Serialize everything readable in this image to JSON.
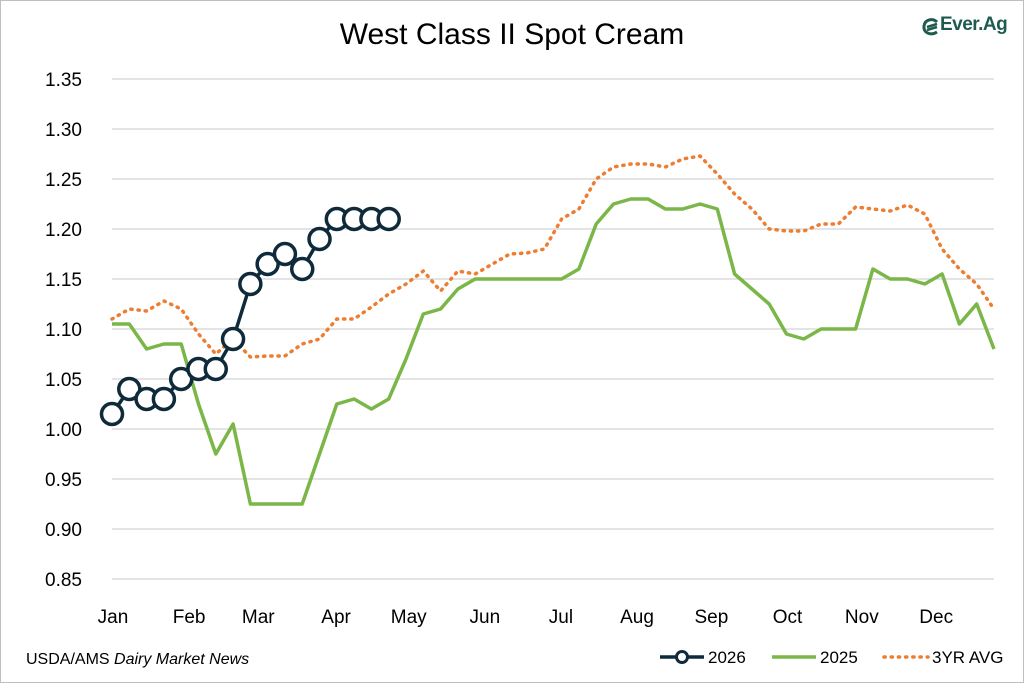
{
  "chart_data": {
    "type": "line",
    "title": "West Class II Spot Cream",
    "xlabel": "",
    "ylabel": "",
    "ylim": [
      0.85,
      1.35
    ],
    "yticks": [
      "1.35",
      "1.30",
      "1.25",
      "1.20",
      "1.15",
      "1.10",
      "1.05",
      "1.00",
      "0.95",
      "0.90",
      "0.85"
    ],
    "month_labels": [
      "Jan",
      "Feb",
      "Mar",
      "Apr",
      "May",
      "Jun",
      "Jul",
      "Aug",
      "Sep",
      "Oct",
      "Nov",
      "Dec"
    ],
    "grid": true,
    "legend_position": "bottom-right",
    "x_unit": "week of year",
    "series": [
      {
        "name": "2026",
        "color": "#0f2a3b",
        "marker": "open-circle",
        "x": [
          1,
          2,
          3,
          4,
          5,
          6,
          7,
          8,
          9,
          10,
          11,
          12,
          13,
          14,
          15,
          16,
          17
        ],
        "values": [
          1.015,
          1.04,
          1.03,
          1.03,
          1.05,
          1.06,
          1.06,
          1.09,
          1.145,
          1.165,
          1.175,
          1.16,
          1.19,
          1.21,
          1.21,
          1.21,
          1.21
        ]
      },
      {
        "name": "2025",
        "color": "#7ab648",
        "x": [
          1,
          2,
          3,
          4,
          5,
          6,
          7,
          8,
          9,
          10,
          11,
          12,
          13,
          14,
          15,
          16,
          17,
          18,
          19,
          20,
          21,
          22,
          23,
          24,
          25,
          26,
          27,
          28,
          29,
          30,
          31,
          32,
          33,
          34,
          35,
          36,
          37,
          38,
          39,
          40,
          41,
          42,
          43,
          44,
          45,
          46,
          47,
          48,
          49,
          50,
          51,
          52
        ],
        "values": [
          1.105,
          1.105,
          1.08,
          1.085,
          1.085,
          1.025,
          0.975,
          1.005,
          0.925,
          0.925,
          0.925,
          0.925,
          0.975,
          1.025,
          1.03,
          1.02,
          1.03,
          1.07,
          1.115,
          1.12,
          1.14,
          1.15,
          1.15,
          1.15,
          1.15,
          1.15,
          1.15,
          1.16,
          1.205,
          1.225,
          1.23,
          1.23,
          1.22,
          1.22,
          1.225,
          1.22,
          1.155,
          1.14,
          1.125,
          1.095,
          1.09,
          1.1,
          1.1,
          1.1,
          1.16,
          1.15,
          1.15,
          1.145,
          1.155,
          1.105,
          1.125,
          1.08
        ]
      },
      {
        "name": "3YR AVG",
        "color": "#ed7d31",
        "dashed": true,
        "x": [
          1,
          2,
          3,
          4,
          5,
          6,
          7,
          8,
          9,
          10,
          11,
          12,
          13,
          14,
          15,
          16,
          17,
          18,
          19,
          20,
          21,
          22,
          23,
          24,
          25,
          26,
          27,
          28,
          29,
          30,
          31,
          32,
          33,
          34,
          35,
          36,
          37,
          38,
          39,
          40,
          41,
          42,
          43,
          44,
          45,
          46,
          47,
          48,
          49,
          50,
          51,
          52
        ],
        "values": [
          1.11,
          1.12,
          1.118,
          1.128,
          1.12,
          1.095,
          1.075,
          1.09,
          1.072,
          1.073,
          1.073,
          1.085,
          1.09,
          1.11,
          1.11,
          1.122,
          1.135,
          1.145,
          1.158,
          1.138,
          1.158,
          1.155,
          1.165,
          1.175,
          1.176,
          1.18,
          1.21,
          1.22,
          1.25,
          1.262,
          1.265,
          1.265,
          1.262,
          1.27,
          1.273,
          1.255,
          1.235,
          1.22,
          1.2,
          1.198,
          1.198,
          1.205,
          1.205,
          1.222,
          1.22,
          1.218,
          1.224,
          1.215,
          1.18,
          1.16,
          1.145,
          1.12
        ]
      }
    ]
  },
  "source": {
    "prefix": "USDA/AMS ",
    "italic": "Dairy Market News"
  },
  "logo": {
    "text": "Ever.Ag",
    "color": "#1d5c4e"
  }
}
